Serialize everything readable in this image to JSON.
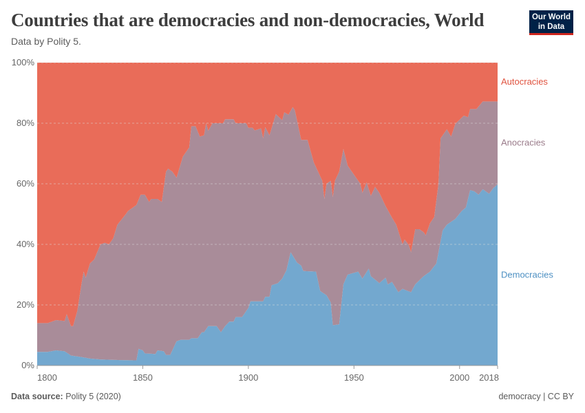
{
  "header": {
    "title": "Countries that are democracies and non-democracies, World",
    "subtitle": "Data by Polity 5.",
    "logo": "Our World in Data"
  },
  "footer": {
    "source_label": "Data source:",
    "source": "Polity 5 (2020)",
    "right": "democracy | CC BY"
  },
  "chart_data": {
    "type": "area",
    "stacked": "100%",
    "xlim": [
      1800,
      2018
    ],
    "ylim": [
      0,
      100
    ],
    "x_ticks": [
      "1800",
      "1850",
      "1900",
      "1950",
      "2000",
      "2018"
    ],
    "y_ticks": [
      "0%",
      "20%",
      "40%",
      "60%",
      "80%",
      "100%"
    ],
    "grid": "horizontal dashed",
    "legend": "right, inline labels",
    "series": [
      {
        "name": "Democracies",
        "color": "#73a8cf",
        "values": [
          [
            1800,
            4.5
          ],
          [
            1805,
            4.5
          ],
          [
            1809,
            5
          ],
          [
            1813,
            4.7
          ],
          [
            1816,
            3.3
          ],
          [
            1821,
            2.8
          ],
          [
            1825,
            2.3
          ],
          [
            1830,
            2
          ],
          [
            1839,
            1.8
          ],
          [
            1847,
            1.7
          ],
          [
            1848,
            5.5
          ],
          [
            1850,
            5
          ],
          [
            1851,
            4
          ],
          [
            1856,
            3.8
          ],
          [
            1857,
            5
          ],
          [
            1860,
            4.7
          ],
          [
            1861,
            3.5
          ],
          [
            1863,
            3.5
          ],
          [
            1866,
            8
          ],
          [
            1868,
            8.5
          ],
          [
            1872,
            8.5
          ],
          [
            1873,
            9
          ],
          [
            1876,
            9
          ],
          [
            1878,
            11
          ],
          [
            1879,
            11
          ],
          [
            1881,
            13
          ],
          [
            1885,
            13
          ],
          [
            1887,
            11
          ],
          [
            1889,
            13
          ],
          [
            1891,
            14.5
          ],
          [
            1893,
            14.5
          ],
          [
            1894,
            16
          ],
          [
            1897,
            16
          ],
          [
            1900,
            19
          ],
          [
            1901,
            21.2
          ],
          [
            1907,
            21.2
          ],
          [
            1908,
            22.7
          ],
          [
            1910,
            22.7
          ],
          [
            1911,
            26.5
          ],
          [
            1914,
            27.2
          ],
          [
            1916,
            28.7
          ],
          [
            1918,
            31.4
          ],
          [
            1920,
            37.4
          ],
          [
            1923,
            34
          ],
          [
            1925,
            33
          ],
          [
            1926,
            31.2
          ],
          [
            1932,
            31
          ],
          [
            1934,
            24.6
          ],
          [
            1937,
            23.2
          ],
          [
            1939,
            20.8
          ],
          [
            1940,
            13.3
          ],
          [
            1943,
            13.6
          ],
          [
            1945,
            26.8
          ],
          [
            1947,
            30
          ],
          [
            1952,
            31
          ],
          [
            1954,
            28.7
          ],
          [
            1957,
            32
          ],
          [
            1958,
            29.5
          ],
          [
            1962,
            27.2
          ],
          [
            1965,
            29
          ],
          [
            1966,
            26.8
          ],
          [
            1968,
            27.6
          ],
          [
            1971,
            24.2
          ],
          [
            1973,
            25.3
          ],
          [
            1977,
            24.2
          ],
          [
            1979,
            26.8
          ],
          [
            1983,
            29.5
          ],
          [
            1986,
            31
          ],
          [
            1989,
            33.7
          ],
          [
            1992,
            44.6
          ],
          [
            1994,
            46.5
          ],
          [
            1998,
            48.4
          ],
          [
            2001,
            51
          ],
          [
            2003,
            52.2
          ],
          [
            2005,
            57.9
          ],
          [
            2007,
            57.5
          ],
          [
            2009,
            56.4
          ],
          [
            2011,
            58.2
          ],
          [
            2014,
            56.7
          ],
          [
            2016,
            58.6
          ],
          [
            2018,
            59.8
          ]
        ]
      },
      {
        "name": "Anocracies",
        "color": "#a98c99",
        "values": "remainder"
      },
      {
        "name": "Autocracies",
        "color": "#e96c59",
        "values": [
          [
            1800,
            86
          ],
          [
            1805,
            86
          ],
          [
            1809,
            85
          ],
          [
            1813,
            85.3
          ],
          [
            1814,
            83
          ],
          [
            1816,
            87
          ],
          [
            1817,
            87
          ],
          [
            1819,
            82
          ],
          [
            1821,
            73
          ],
          [
            1822,
            69
          ],
          [
            1823,
            71
          ],
          [
            1825,
            66.3
          ],
          [
            1827,
            65
          ],
          [
            1830,
            60
          ],
          [
            1832,
            59.5
          ],
          [
            1834,
            60
          ],
          [
            1836,
            58
          ],
          [
            1838,
            53.5
          ],
          [
            1842,
            50
          ],
          [
            1843,
            49
          ],
          [
            1847,
            47
          ],
          [
            1849,
            43.6
          ],
          [
            1851,
            43.6
          ],
          [
            1853,
            46
          ],
          [
            1854,
            45
          ],
          [
            1857,
            45
          ],
          [
            1859,
            46
          ],
          [
            1861,
            36
          ],
          [
            1862,
            35
          ],
          [
            1864,
            36
          ],
          [
            1866,
            38
          ],
          [
            1869,
            31
          ],
          [
            1872,
            28
          ],
          [
            1873,
            21
          ],
          [
            1875,
            21
          ],
          [
            1877,
            24.4
          ],
          [
            1879,
            24
          ],
          [
            1880,
            20
          ],
          [
            1881,
            22.5
          ],
          [
            1883,
            20
          ],
          [
            1888,
            20
          ],
          [
            1889,
            18.7
          ],
          [
            1893,
            18.7
          ],
          [
            1894,
            20
          ],
          [
            1899,
            20
          ],
          [
            1900,
            21.5
          ],
          [
            1902,
            21.5
          ],
          [
            1903,
            22.4
          ],
          [
            1906,
            21.7
          ],
          [
            1907,
            25
          ],
          [
            1908,
            21.3
          ],
          [
            1910,
            24
          ],
          [
            1913,
            17
          ],
          [
            1916,
            19
          ],
          [
            1917,
            16.4
          ],
          [
            1919,
            17.2
          ],
          [
            1921,
            14.7
          ],
          [
            1922,
            15.7
          ],
          [
            1925,
            25.5
          ],
          [
            1928,
            25.5
          ],
          [
            1931,
            33
          ],
          [
            1935,
            39
          ],
          [
            1936,
            45
          ],
          [
            1937,
            40
          ],
          [
            1939,
            39
          ],
          [
            1940,
            44.4
          ],
          [
            1941,
            39
          ],
          [
            1943,
            36
          ],
          [
            1945,
            28.5
          ],
          [
            1947,
            34
          ],
          [
            1950,
            37
          ],
          [
            1953,
            40
          ],
          [
            1954,
            43
          ],
          [
            1956,
            39.5
          ],
          [
            1958,
            44
          ],
          [
            1960,
            41
          ],
          [
            1962,
            43
          ],
          [
            1965,
            47.4
          ],
          [
            1968,
            51.2
          ],
          [
            1970,
            53.5
          ],
          [
            1973,
            60
          ],
          [
            1974,
            58.4
          ],
          [
            1976,
            60.3
          ],
          [
            1977,
            62.6
          ],
          [
            1979,
            55
          ],
          [
            1981,
            55
          ],
          [
            1983,
            56
          ],
          [
            1984,
            57
          ],
          [
            1986,
            53
          ],
          [
            1988,
            51
          ],
          [
            1990,
            40
          ],
          [
            1991,
            25
          ],
          [
            1994,
            22
          ],
          [
            1996,
            24.4
          ],
          [
            1998,
            20.2
          ],
          [
            2002,
            17.5
          ],
          [
            2004,
            18
          ],
          [
            2005,
            15.3
          ],
          [
            2008,
            15.3
          ],
          [
            2011,
            12.8
          ],
          [
            2018,
            12.8
          ]
        ]
      }
    ],
    "legend_colors": {
      "Democracies": "#4c8fc2",
      "Anocracies": "#9a7b8a",
      "Autocracies": "#e0533f"
    }
  }
}
